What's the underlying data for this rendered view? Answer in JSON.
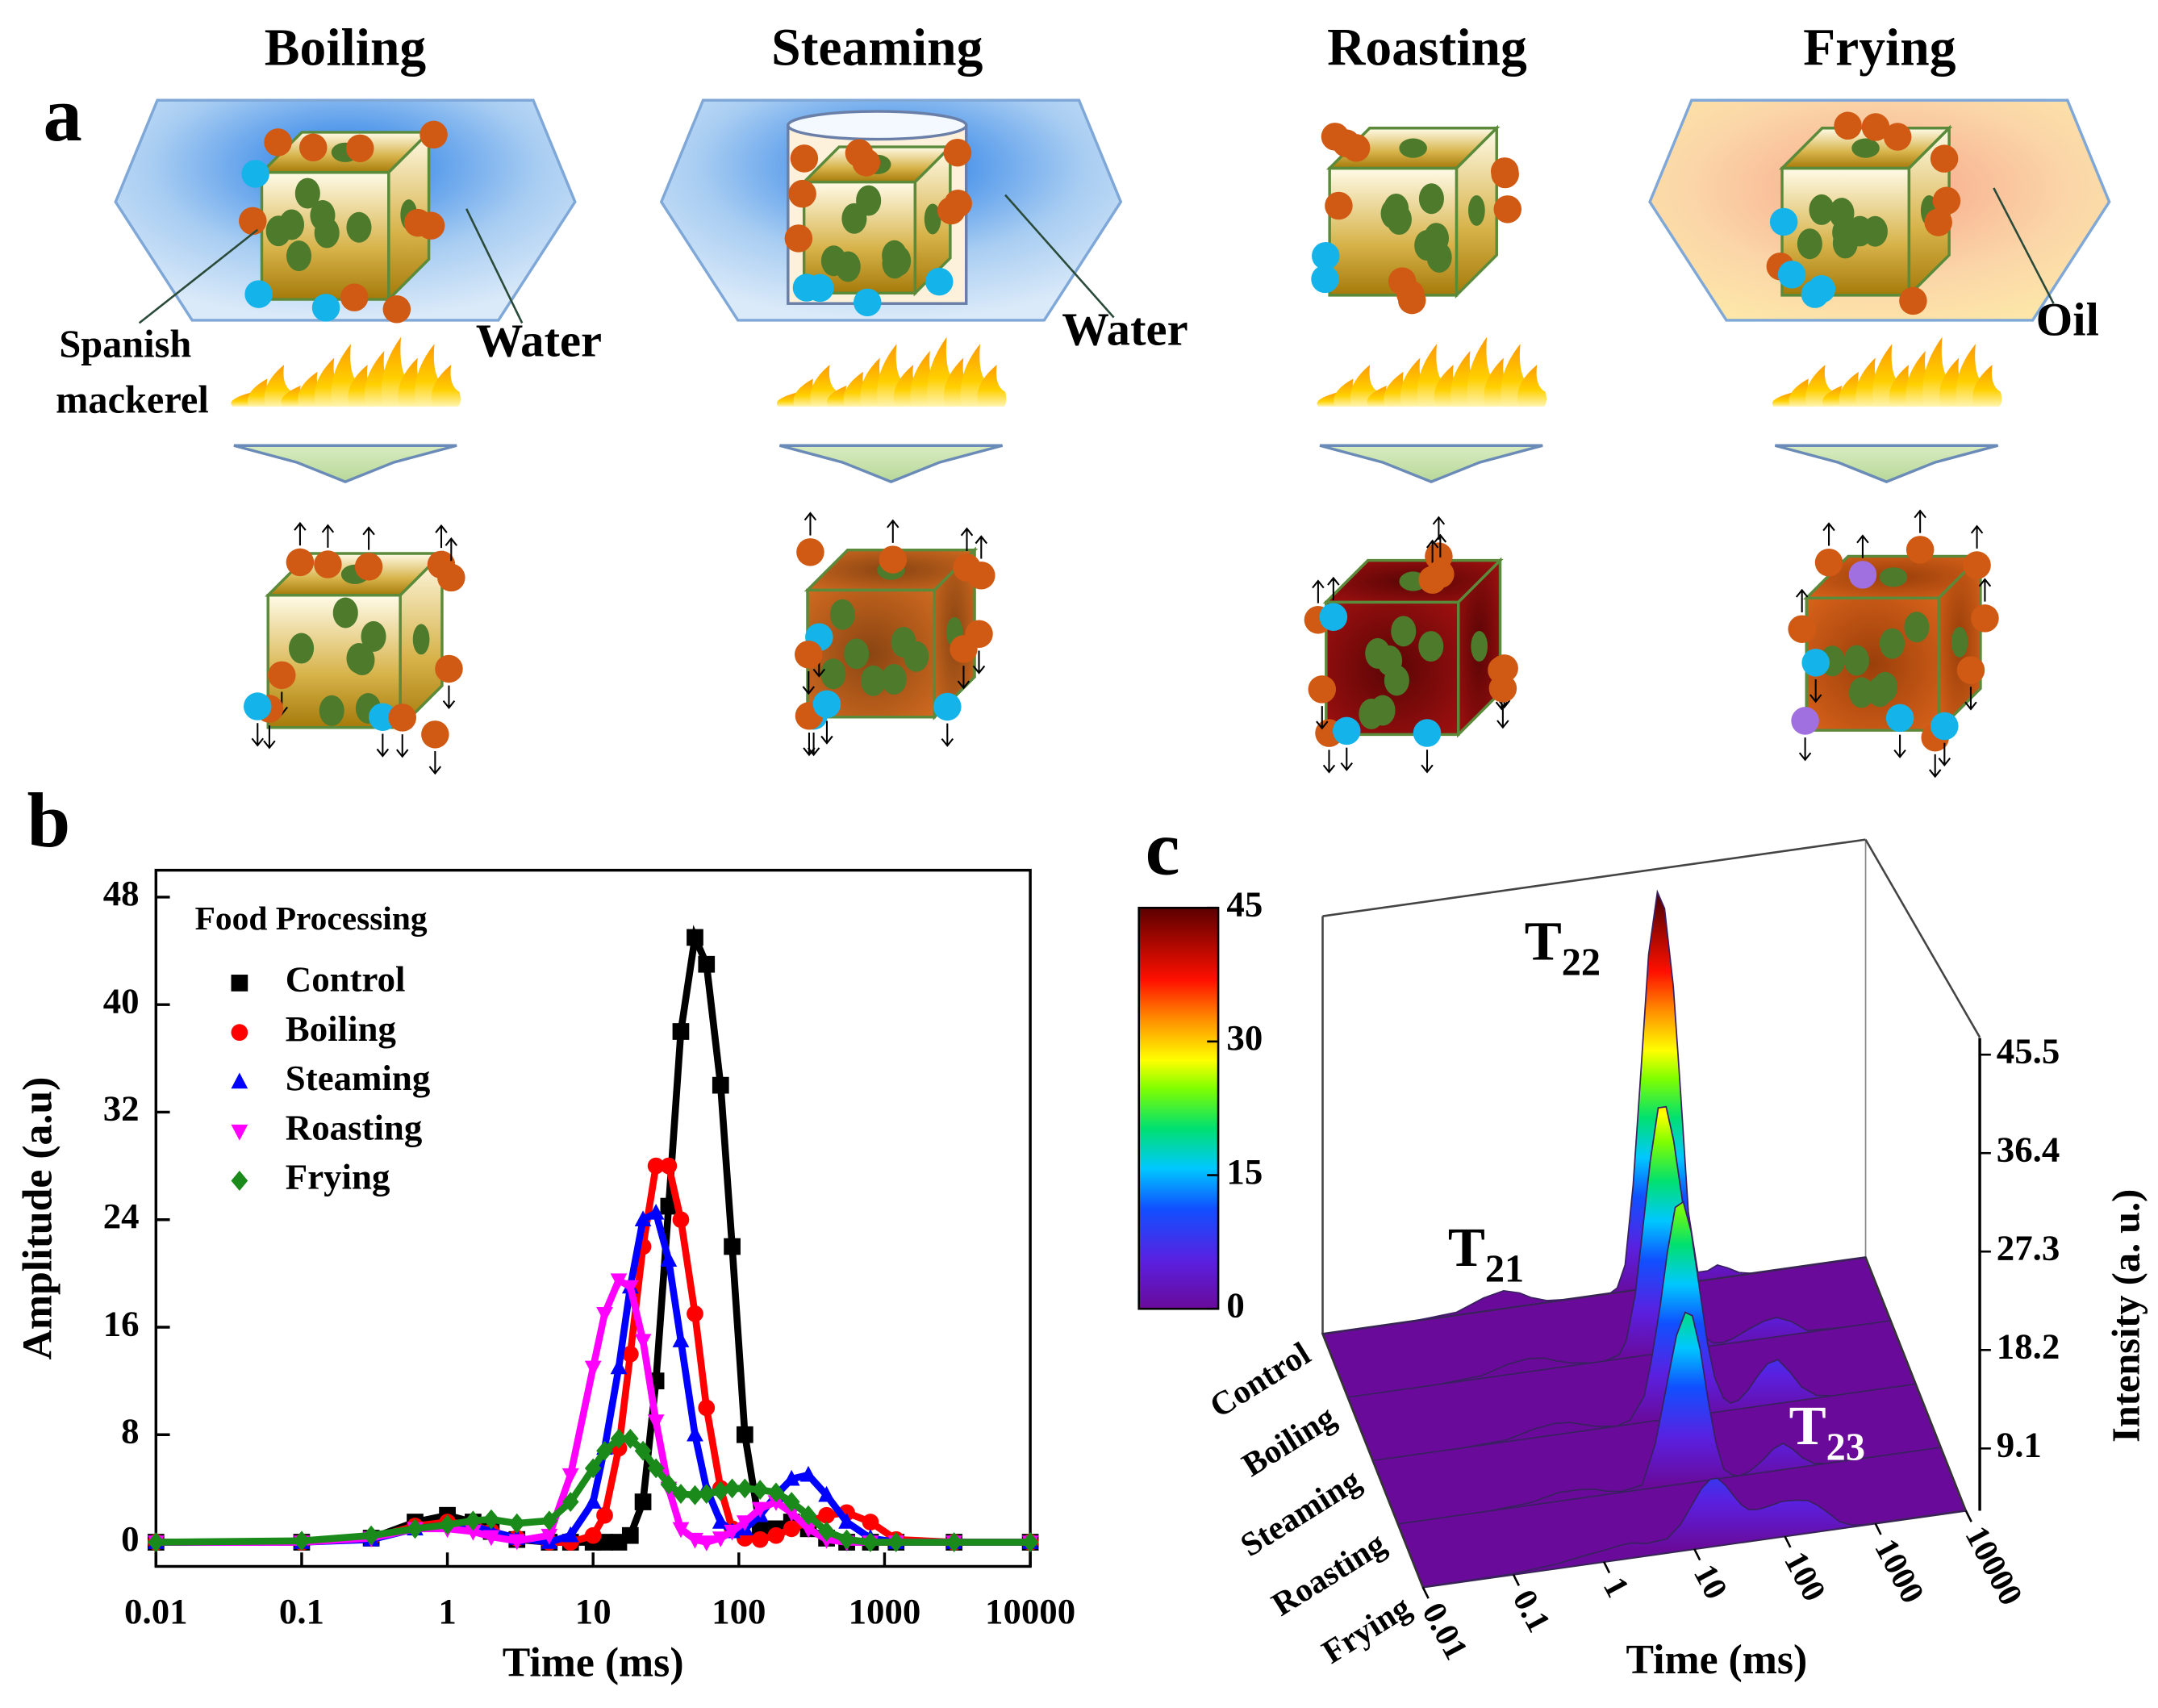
{
  "panel_labels": [
    "a",
    "b",
    "c"
  ],
  "panel_a": {
    "methods": [
      "Boiling",
      "Steaming",
      "Roasting",
      "Frying"
    ],
    "fish_label": [
      "Spanish",
      "mackerel"
    ],
    "boiling_medium": "Water",
    "steaming_medium": "Water",
    "frying_medium": "Oil"
  },
  "chart_data": [
    {
      "type": "scatter-line",
      "xlabel": "Time (ms)",
      "ylabel": "Amplitude (a.u)",
      "xscale": "log",
      "xlim": [
        0.01,
        10000
      ],
      "xticks": [
        0.01,
        0.1,
        1,
        10,
        100,
        1000,
        10000
      ],
      "ylim": [
        -1.8,
        50
      ],
      "yticks": [
        0,
        8,
        16,
        24,
        32,
        40,
        48
      ],
      "legend_title": "Food Processing",
      "legend": "upper left",
      "x": [
        0.01,
        0.1,
        0.3,
        0.6,
        1,
        1.5,
        2,
        3,
        5,
        7,
        10,
        12,
        15,
        18,
        22,
        27,
        33,
        40,
        50,
        60,
        75,
        90,
        110,
        140,
        180,
        230,
        300,
        400,
        550,
        800,
        1200,
        3000,
        10000
      ],
      "series": [
        {
          "name": "Control",
          "color": "#000000",
          "marker": "square",
          "values": [
            0,
            0,
            0.3,
            1.5,
            2,
            1.5,
            0.8,
            0.2,
            0,
            0,
            0,
            0,
            0,
            0.5,
            3,
            12,
            25,
            38,
            45,
            43,
            34,
            22,
            8,
            1,
            1,
            1.5,
            1,
            0.3,
            0,
            0,
            0,
            0,
            0
          ]
        },
        {
          "name": "Boiling",
          "color": "#ff0000",
          "marker": "circle",
          "values": [
            0,
            0,
            0.3,
            1.2,
            1.5,
            1.3,
            0.8,
            0.3,
            0,
            0,
            0.5,
            2,
            7,
            14,
            22,
            28,
            28,
            24,
            17,
            10,
            4,
            1,
            0.3,
            0.2,
            0.5,
            1,
            1.5,
            2,
            2.2,
            1.5,
            0.2,
            0,
            0
          ]
        },
        {
          "name": "Steaming",
          "color": "#0000ff",
          "marker": "triangle",
          "values": [
            0,
            0,
            0.2,
            1,
            1.3,
            1.2,
            0.8,
            0.3,
            0,
            0.5,
            3,
            7,
            13,
            19,
            24,
            24.5,
            21,
            15,
            8,
            4,
            1.5,
            0.8,
            1,
            2,
            3.5,
            4.7,
            5,
            3.5,
            1.5,
            0.3,
            0,
            0,
            0
          ]
        },
        {
          "name": "Roasting",
          "color": "#ff00ff",
          "marker": "triangle-down",
          "values": [
            0,
            0,
            0.3,
            1,
            1,
            0.8,
            0.4,
            0.1,
            0.5,
            5,
            13,
            17,
            19.5,
            19,
            15,
            9,
            4,
            1,
            0.2,
            0,
            0.3,
            0.8,
            1.5,
            2.5,
            3,
            2.2,
            1,
            0.2,
            0,
            0,
            0,
            0,
            0
          ]
        },
        {
          "name": "Frying",
          "color": "#1a8a1a",
          "marker": "diamond",
          "values": [
            0,
            0.1,
            0.5,
            1,
            1.3,
            1.6,
            1.7,
            1.4,
            1.6,
            3,
            5.5,
            6.8,
            7.7,
            7.7,
            6.8,
            5.5,
            4.3,
            3.6,
            3.5,
            3.6,
            3.8,
            4,
            4,
            3.9,
            3.7,
            3,
            2,
            0.8,
            0.2,
            0,
            0,
            0,
            0
          ]
        }
      ]
    },
    {
      "type": "waterfall3d",
      "xlabel": "Time (ms)",
      "zlabel": "Intensity (a. u.)",
      "xscale": "log",
      "xlim": [
        0.01,
        10000
      ],
      "xticks": [
        0.01,
        0.1,
        1,
        10,
        100,
        1000,
        10000
      ],
      "categories": [
        "Control",
        "Boiling",
        "Steaming",
        "Roasting",
        "Frying"
      ],
      "zlim": [
        0,
        45.5
      ],
      "zticks": [
        9.1,
        18.2,
        27.3,
        36.4,
        45.5
      ],
      "colorbar_range": [
        0,
        45
      ],
      "colorbar_ticks": [
        0,
        15,
        30,
        45
      ],
      "annotations": [
        {
          "text": "T",
          "sub": "22"
        },
        {
          "text": "T",
          "sub": "21"
        },
        {
          "text": "T",
          "sub": "23"
        }
      ]
    }
  ]
}
